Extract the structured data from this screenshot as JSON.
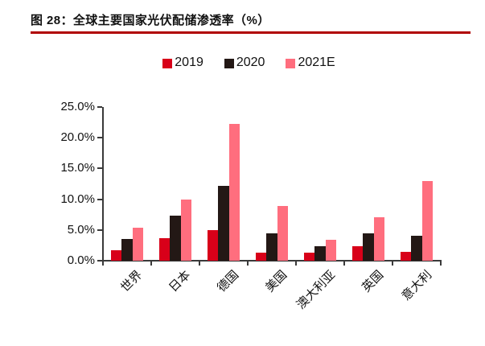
{
  "page": {
    "title": "图 28：全球主要国家光伏配储渗透率（%）"
  },
  "chart_data": {
    "type": "bar",
    "title": "全球主要国家光伏配储渗透率（%）",
    "figure_label": "图 28",
    "categories": [
      "世界",
      "日本",
      "德国",
      "美国",
      "澳大利亚",
      "英国",
      "意大利"
    ],
    "series": [
      {
        "name": "2019",
        "color": "#d80019",
        "values": [
          1.7,
          3.7,
          5.0,
          1.3,
          1.3,
          2.4,
          1.4
        ]
      },
      {
        "name": "2020",
        "color": "#231815",
        "values": [
          3.5,
          7.3,
          12.2,
          4.4,
          2.4,
          4.4,
          4.0
        ]
      },
      {
        "name": "2021E",
        "color": "#ff6e7e",
        "values": [
          5.4,
          9.9,
          22.2,
          8.9,
          3.4,
          7.1,
          12.9
        ]
      }
    ],
    "xlabel": "",
    "ylabel": "",
    "ylim": [
      0,
      25
    ],
    "ytick_step": 5,
    "ytick_labels": [
      "0.0%",
      "5.0%",
      "10.0%",
      "15.0%",
      "20.0%",
      "25.0%"
    ],
    "grid": false,
    "legend_position": "top-center",
    "category_label_rotation": -45
  },
  "colors": {
    "title_text": "#111111",
    "title_underline": "#b00000",
    "axis": "#3a3a3a",
    "background": "#ffffff"
  }
}
